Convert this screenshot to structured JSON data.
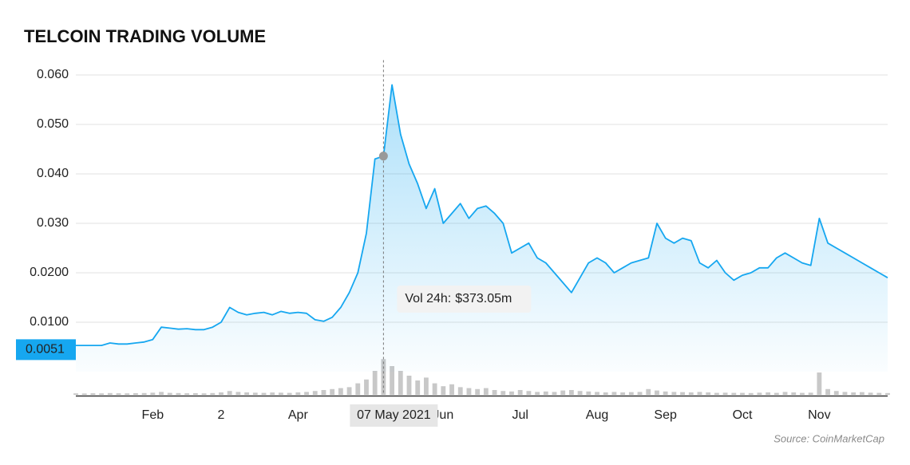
{
  "chart_data": {
    "type": "line",
    "title": "TELCOIN TRADING VOLUME",
    "source": "Source: CoinMarketCap",
    "color": "#16a7f0",
    "grid": true,
    "xlim": [
      0,
      95
    ],
    "xticks": [
      {
        "value": 9,
        "label": "Feb"
      },
      {
        "value": 17,
        "label": "2"
      },
      {
        "value": 26,
        "label": "Apr"
      },
      {
        "value": 43,
        "label": "Jun"
      },
      {
        "value": 52,
        "label": "Jul"
      },
      {
        "value": 61,
        "label": "Aug"
      },
      {
        "value": 69,
        "label": "Sep"
      },
      {
        "value": 78,
        "label": "Oct"
      },
      {
        "value": 87,
        "label": "Nov"
      }
    ],
    "ylim": [
      0,
      0.063
    ],
    "yticks": [
      {
        "value": 0.01,
        "label": "0.0100"
      },
      {
        "value": 0.02,
        "label": "0.0200"
      },
      {
        "value": 0.03,
        "label": "0.030"
      },
      {
        "value": 0.04,
        "label": "0.040"
      },
      {
        "value": 0.05,
        "label": "0.050"
      },
      {
        "value": 0.06,
        "label": "0.060"
      }
    ],
    "price_badge": {
      "value": 0.0051,
      "label": "0.0051"
    },
    "values": [
      0.0053,
      0.0053,
      0.0053,
      0.0053,
      0.0058,
      0.0056,
      0.0056,
      0.0058,
      0.006,
      0.0065,
      0.009,
      0.0088,
      0.0086,
      0.0087,
      0.0085,
      0.0085,
      0.009,
      0.01,
      0.013,
      0.012,
      0.0115,
      0.0118,
      0.012,
      0.0115,
      0.0122,
      0.0118,
      0.012,
      0.0118,
      0.0105,
      0.0102,
      0.011,
      0.013,
      0.016,
      0.02,
      0.028,
      0.043,
      0.0436,
      0.058,
      0.048,
      0.042,
      0.038,
      0.033,
      0.037,
      0.03,
      0.032,
      0.034,
      0.031,
      0.033,
      0.0335,
      0.032,
      0.03,
      0.024,
      0.025,
      0.026,
      0.023,
      0.022,
      0.02,
      0.018,
      0.016,
      0.019,
      0.022,
      0.023,
      0.022,
      0.02,
      0.021,
      0.022,
      0.0225,
      0.023,
      0.03,
      0.027,
      0.026,
      0.027,
      0.0265,
      0.022,
      0.021,
      0.0225,
      0.02,
      0.0185,
      0.0195,
      0.02,
      0.021,
      0.021,
      0.023,
      0.024,
      0.023,
      0.022,
      0.0215,
      0.031,
      0.026,
      0.025,
      0.024,
      0.023,
      0.022,
      0.021,
      0.02,
      0.019
    ],
    "volume_color": "#c8c8c8",
    "volume_ylim": [
      0,
      500
    ],
    "volume": [
      15,
      14,
      16,
      15,
      18,
      16,
      15,
      17,
      18,
      22,
      30,
      20,
      18,
      16,
      17,
      15,
      18,
      25,
      40,
      30,
      25,
      22,
      20,
      24,
      22,
      20,
      25,
      30,
      40,
      50,
      60,
      70,
      80,
      120,
      160,
      250,
      373.05,
      300,
      250,
      200,
      150,
      180,
      120,
      90,
      110,
      80,
      70,
      60,
      70,
      50,
      40,
      35,
      50,
      40,
      30,
      35,
      30,
      45,
      50,
      40,
      35,
      30,
      25,
      30,
      25,
      28,
      30,
      60,
      45,
      35,
      30,
      28,
      25,
      30,
      25,
      20,
      22,
      20,
      20,
      18,
      22,
      25,
      20,
      30,
      25,
      20,
      22,
      233,
      60,
      40,
      30,
      25,
      28,
      22,
      20,
      18
    ],
    "tooltip": {
      "index": 36,
      "date": "07 May 2021",
      "text": "Vol 24h:",
      "value_label": "$373.05m"
    }
  }
}
